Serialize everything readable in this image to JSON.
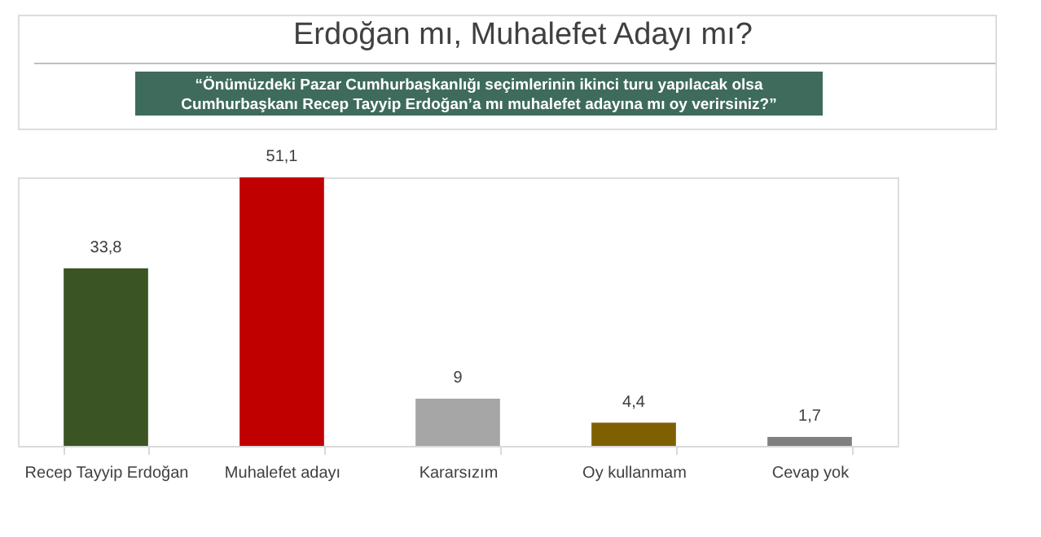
{
  "chart_data": {
    "type": "bar",
    "title": "Erdoğan mı, Muhalefet Adayı mı?",
    "subtitle": "“Önümüzdeki Pazar Cumhurbaşkanlığı seçimlerinin ikinci turu yapılacak olsa Cumhurbaşkanı Recep Tayyip Erdoğan’a mı muhalefet adayına mı oy verirsiniz?”",
    "categories": [
      "Recep Tayyip Erdoğan",
      "Muhalefet adayı",
      "Kararsızım",
      "Oy kullanmam",
      "Cevap yok"
    ],
    "values": [
      33.8,
      51.1,
      9,
      4.4,
      1.7
    ],
    "colors": [
      "#3a5423",
      "#c00000",
      "#a6a6a6",
      "#7f6000",
      "#7f7f7f"
    ],
    "value_labels": [
      "33,8",
      "51,1",
      "9",
      "4,4",
      "1,7"
    ],
    "tick_labels": "x",
    "grid": false
  }
}
